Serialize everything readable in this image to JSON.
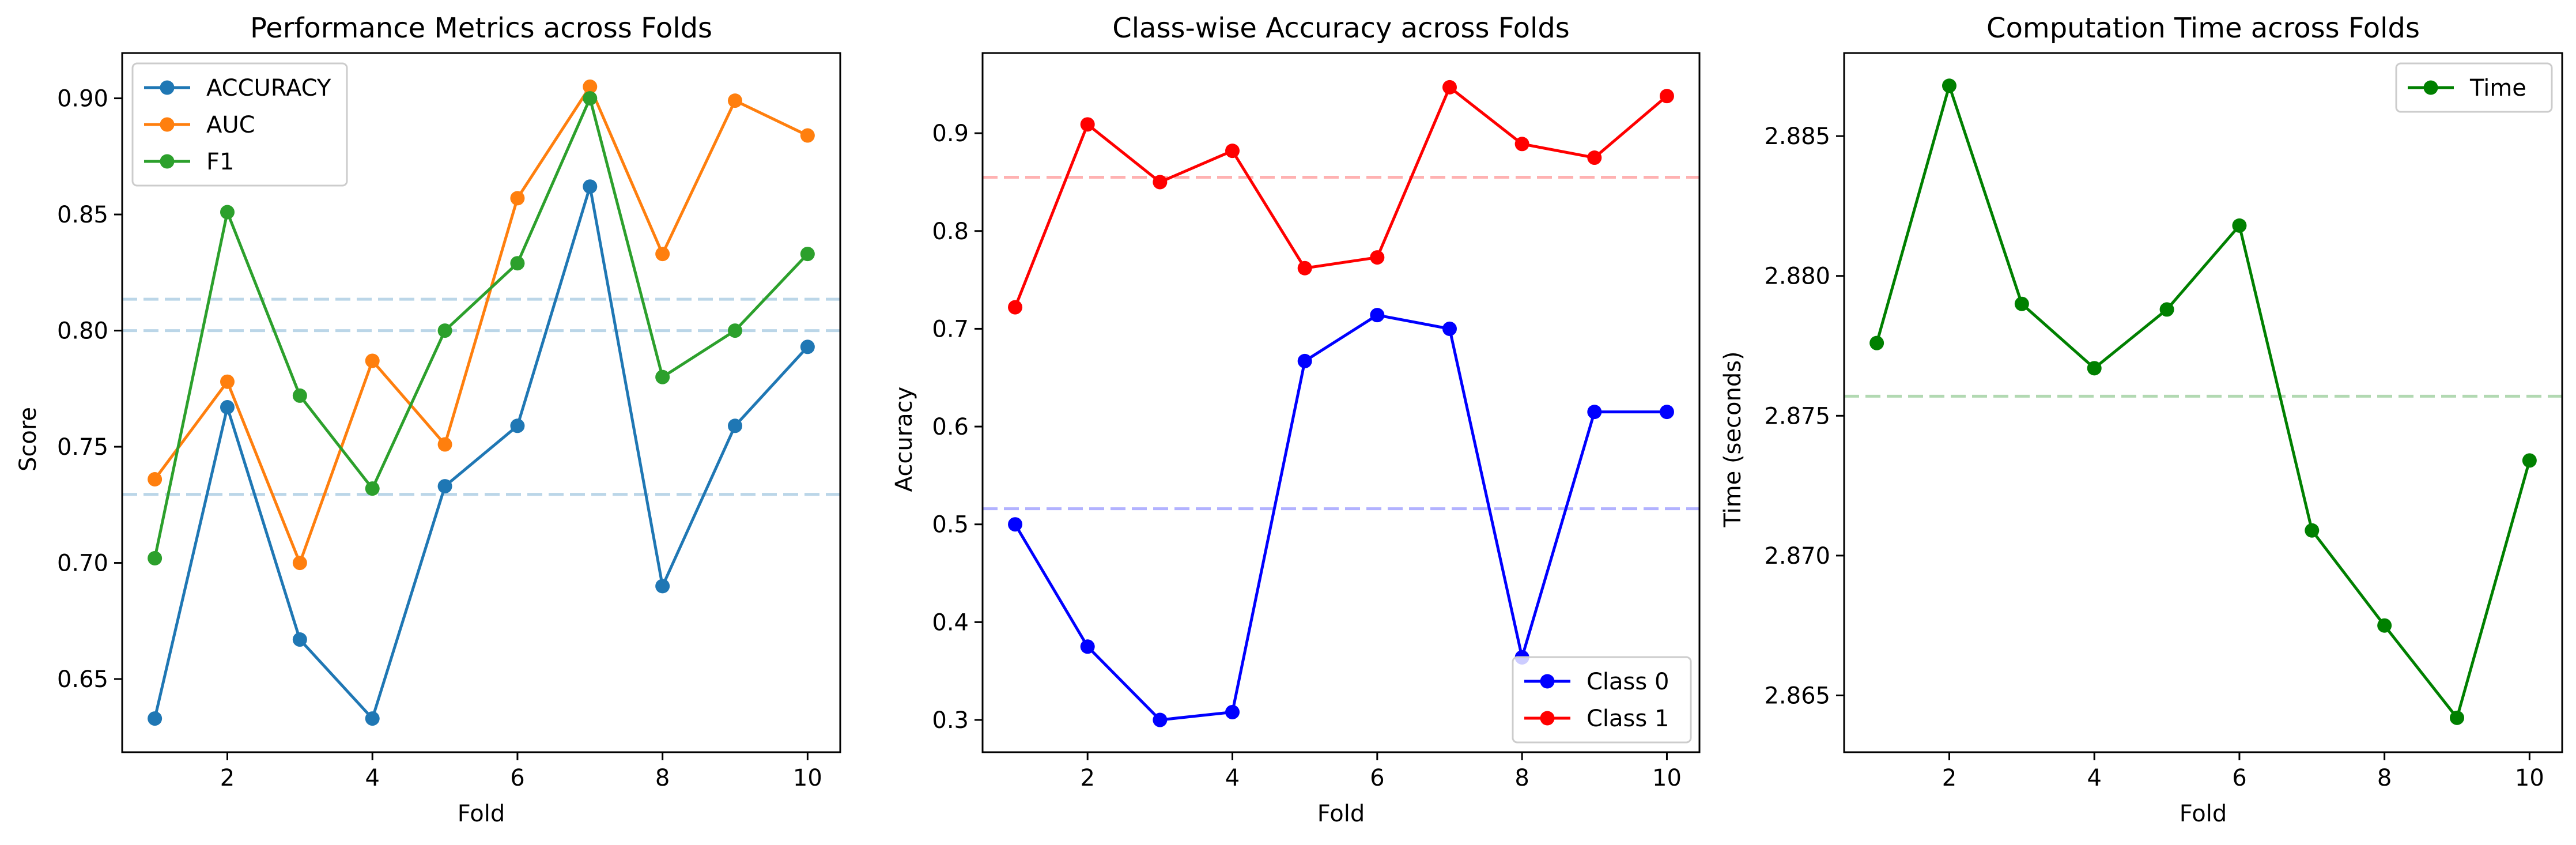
{
  "chart_data": [
    {
      "type": "line",
      "title": "Performance Metrics across Folds",
      "xlabel": "Fold",
      "ylabel": "Score",
      "xlim": [
        0.55,
        10.45
      ],
      "ylim": [
        0.6185,
        0.9195
      ],
      "xticks": [
        2,
        4,
        6,
        8,
        10
      ],
      "xtick_labels": [
        "2",
        "4",
        "6",
        "8",
        "10"
      ],
      "yticks": [
        0.65,
        0.7,
        0.75,
        0.8,
        0.85,
        0.9
      ],
      "ytick_labels": [
        "0.65",
        "0.70",
        "0.75",
        "0.80",
        "0.85",
        "0.90"
      ],
      "x": [
        1,
        2,
        3,
        4,
        5,
        6,
        7,
        8,
        9,
        10
      ],
      "series": [
        {
          "name": "ACCURACY",
          "color": "#1f77b4",
          "values": [
            0.633,
            0.767,
            0.667,
            0.633,
            0.733,
            0.759,
            0.862,
            0.69,
            0.759,
            0.793
          ]
        },
        {
          "name": "AUC",
          "color": "#ff7f0e",
          "values": [
            0.736,
            0.778,
            0.7,
            0.787,
            0.751,
            0.857,
            0.905,
            0.833,
            0.899,
            0.884
          ]
        },
        {
          "name": "F1",
          "color": "#2ca02c",
          "values": [
            0.702,
            0.851,
            0.772,
            0.732,
            0.8,
            0.829,
            0.9,
            0.78,
            0.8,
            0.833
          ]
        }
      ],
      "reference_lines": [
        {
          "y": 0.8135,
          "color": "#1f77b4"
        },
        {
          "y": 0.8,
          "color": "#1f77b4"
        },
        {
          "y": 0.7295,
          "color": "#1f77b4"
        }
      ],
      "legend": "top-left",
      "grid": false
    },
    {
      "type": "line",
      "title": "Class-wise Accuracy across Folds",
      "xlabel": "Fold",
      "ylabel": "Accuracy",
      "xlim": [
        0.55,
        10.45
      ],
      "ylim": [
        0.267,
        0.982
      ],
      "xticks": [
        2,
        4,
        6,
        8,
        10
      ],
      "xtick_labels": [
        "2",
        "4",
        "6",
        "8",
        "10"
      ],
      "yticks": [
        0.3,
        0.4,
        0.5,
        0.6,
        0.7,
        0.8,
        0.9
      ],
      "ytick_labels": [
        "0.3",
        "0.4",
        "0.5",
        "0.6",
        "0.7",
        "0.8",
        "0.9"
      ],
      "x": [
        1,
        2,
        3,
        4,
        5,
        6,
        7,
        8,
        9,
        10
      ],
      "series": [
        {
          "name": "Class 0",
          "color": "#0000ff",
          "values": [
            0.5,
            0.375,
            0.3,
            0.308,
            0.667,
            0.714,
            0.7,
            0.364,
            0.615,
            0.615
          ]
        },
        {
          "name": "Class 1",
          "color": "#ff0000",
          "values": [
            0.722,
            0.909,
            0.85,
            0.882,
            0.762,
            0.773,
            0.947,
            0.889,
            0.875,
            0.938
          ]
        }
      ],
      "reference_lines": [
        {
          "y": 0.855,
          "color": "#ff0000"
        },
        {
          "y": 0.516,
          "color": "#0000ff"
        }
      ],
      "legend": "bottom-right",
      "grid": false
    },
    {
      "type": "line",
      "title": "Computation Time across Folds",
      "xlabel": "Fold",
      "ylabel": "Time (seconds)",
      "xlim": [
        0.55,
        10.45
      ],
      "ylim": [
        2.86297,
        2.88797
      ],
      "xticks": [
        2,
        4,
        6,
        8,
        10
      ],
      "xtick_labels": [
        "2",
        "4",
        "6",
        "8",
        "10"
      ],
      "yticks": [
        2.865,
        2.87,
        2.875,
        2.88,
        2.885
      ],
      "ytick_labels": [
        "2.865",
        "2.870",
        "2.875",
        "2.880",
        "2.885"
      ],
      "x": [
        1,
        2,
        3,
        4,
        5,
        6,
        7,
        8,
        9,
        10
      ],
      "series": [
        {
          "name": "Time",
          "color": "#008000",
          "values": [
            2.8776,
            2.8868,
            2.879,
            2.8767,
            2.8788,
            2.8818,
            2.8709,
            2.8675,
            2.8642,
            2.8734
          ]
        }
      ],
      "reference_lines": [
        {
          "y": 2.8757,
          "color": "#008000"
        }
      ],
      "legend": "top-right",
      "grid": false
    }
  ]
}
